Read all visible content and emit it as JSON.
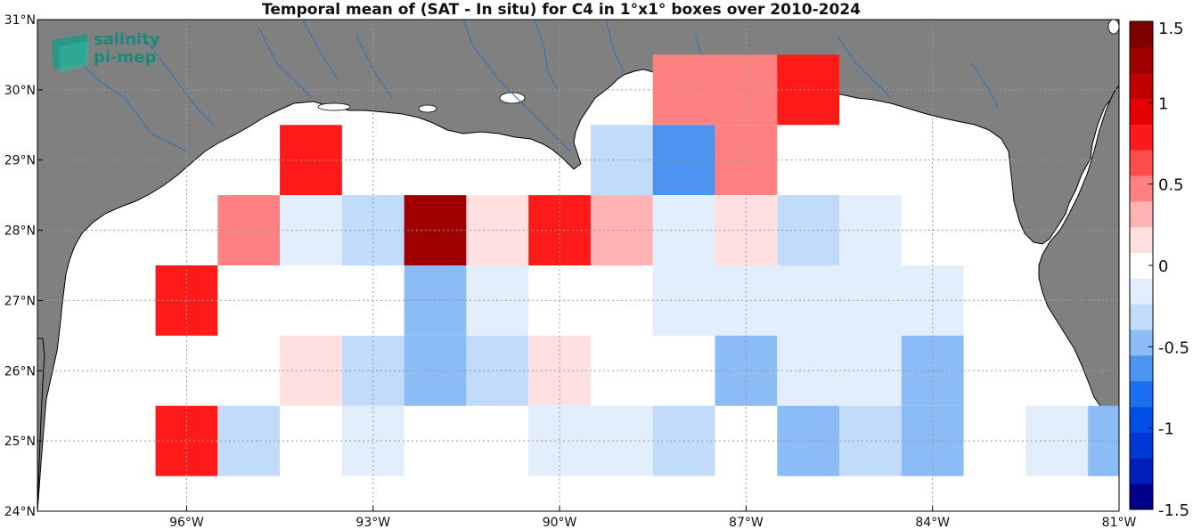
{
  "title": "Temporal mean of (SAT - In situ) for C4 in 1°x1° boxes over 2010-2024",
  "logo": {
    "line1": "salinity",
    "line2": "pi-mep"
  },
  "colors": {
    "land": "#808080",
    "coast": "#000000",
    "rivers": "#2f73b8",
    "grid": "#9a9a9a"
  },
  "axes": {
    "lon_ticks": [
      {
        "value": -96,
        "label": "96°W"
      },
      {
        "value": -93,
        "label": "93°W"
      },
      {
        "value": -90,
        "label": "90°W"
      },
      {
        "value": -87,
        "label": "87°W"
      },
      {
        "value": -84,
        "label": "84°W"
      },
      {
        "value": -81,
        "label": "81°W"
      }
    ],
    "lat_ticks": [
      {
        "value": 24,
        "label": "24°N"
      },
      {
        "value": 25,
        "label": "25°N"
      },
      {
        "value": 26,
        "label": "26°N"
      },
      {
        "value": 27,
        "label": "27°N"
      },
      {
        "value": 28,
        "label": "28°N"
      },
      {
        "value": 29,
        "label": "29°N"
      },
      {
        "value": 30,
        "label": "30°N"
      },
      {
        "value": 31,
        "label": "31°N"
      }
    ],
    "lon_range": [
      -98.4,
      -81
    ],
    "lat_range": [
      24,
      31
    ]
  },
  "colorbar": {
    "range": [
      -1.5,
      1.5
    ],
    "ticks": [
      {
        "value": 1.5,
        "label": "1.5"
      },
      {
        "value": 1,
        "label": "1"
      },
      {
        "value": 0.5,
        "label": "0.5"
      },
      {
        "value": 0,
        "label": "0"
      },
      {
        "value": -0.5,
        "label": "-0.5"
      },
      {
        "value": -1,
        "label": "-1"
      },
      {
        "value": -1.5,
        "label": "-1.5"
      }
    ]
  },
  "chart_data": {
    "type": "heatmap",
    "title": "Temporal mean of (SAT - In situ) for C4 in 1°x1° boxes over 2010-2024",
    "units_note": "",
    "cells": [
      {
        "lon": -94,
        "lat": 29,
        "value": 0.8
      },
      {
        "lon": -88,
        "lat": 30,
        "value": 0.4
      },
      {
        "lon": -87,
        "lat": 30,
        "value": 0.4
      },
      {
        "lon": -86,
        "lat": 30,
        "value": 0.8
      },
      {
        "lon": -89,
        "lat": 29,
        "value": -0.3
      },
      {
        "lon": -88,
        "lat": 29,
        "value": -0.7
      },
      {
        "lon": -87,
        "lat": 29,
        "value": 0.4
      },
      {
        "lon": -95,
        "lat": 28,
        "value": 0.5
      },
      {
        "lon": -94,
        "lat": 28,
        "value": -0.1
      },
      {
        "lon": -93,
        "lat": 28,
        "value": -0.3
      },
      {
        "lon": -92,
        "lat": 28,
        "value": 1.3
      },
      {
        "lon": -91,
        "lat": 28,
        "value": 0.15
      },
      {
        "lon": -90,
        "lat": 28,
        "value": 0.75
      },
      {
        "lon": -89,
        "lat": 28,
        "value": 0.35
      },
      {
        "lon": -88,
        "lat": 28,
        "value": -0.2
      },
      {
        "lon": -87,
        "lat": 28,
        "value": 0.15
      },
      {
        "lon": -86,
        "lat": 28,
        "value": -0.3
      },
      {
        "lon": -85,
        "lat": 28,
        "value": -0.1
      },
      {
        "lon": -96,
        "lat": 27,
        "value": 0.8
      },
      {
        "lon": -92,
        "lat": 27,
        "value": -0.45
      },
      {
        "lon": -91,
        "lat": 27,
        "value": -0.2
      },
      {
        "lon": -88,
        "lat": 27,
        "value": -0.2
      },
      {
        "lon": -87,
        "lat": 27,
        "value": -0.2
      },
      {
        "lon": -86,
        "lat": 27,
        "value": -0.2
      },
      {
        "lon": -85,
        "lat": 27,
        "value": -0.2
      },
      {
        "lon": -84,
        "lat": 27,
        "value": -0.1
      },
      {
        "lon": -94,
        "lat": 26,
        "value": 0.15
      },
      {
        "lon": -93,
        "lat": 26,
        "value": -0.3
      },
      {
        "lon": -92,
        "lat": 26,
        "value": -0.5
      },
      {
        "lon": -91,
        "lat": 26,
        "value": -0.3
      },
      {
        "lon": -90,
        "lat": 26,
        "value": 0.15
      },
      {
        "lon": -87,
        "lat": 26,
        "value": -0.4
      },
      {
        "lon": -86,
        "lat": 26,
        "value": -0.2
      },
      {
        "lon": -85,
        "lat": 26,
        "value": -0.1
      },
      {
        "lon": -84,
        "lat": 26,
        "value": -0.45
      },
      {
        "lon": -96,
        "lat": 25,
        "value": 0.8
      },
      {
        "lon": -95,
        "lat": 25,
        "value": -0.35
      },
      {
        "lon": -93,
        "lat": 25,
        "value": -0.2
      },
      {
        "lon": -90,
        "lat": 25,
        "value": -0.2
      },
      {
        "lon": -89,
        "lat": 25,
        "value": -0.1
      },
      {
        "lon": -88,
        "lat": 25,
        "value": -0.3
      },
      {
        "lon": -86,
        "lat": 25,
        "value": -0.4
      },
      {
        "lon": -85,
        "lat": 25,
        "value": -0.25
      },
      {
        "lon": -84,
        "lat": 25,
        "value": -0.5
      },
      {
        "lon": -82,
        "lat": 25,
        "value": -0.2
      },
      {
        "lon": -81,
        "lat": 25,
        "value": -0.45
      }
    ]
  }
}
